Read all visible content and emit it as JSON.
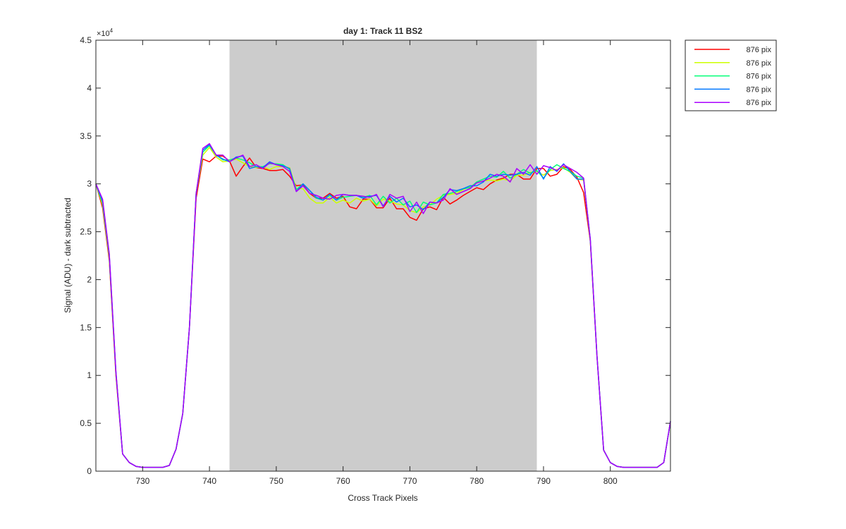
{
  "chart_data": {
    "type": "line",
    "title": "day 1: Track 11  BS2",
    "xlabel": "Cross Track Pixels",
    "ylabel": "Signal (ADU) - dark subtracted",
    "y_multiplier_label": "×10",
    "y_multiplier_exponent": "4",
    "xlim": [
      723,
      809
    ],
    "ylim": [
      0,
      45000
    ],
    "x_ticks": [
      730,
      740,
      750,
      760,
      770,
      780,
      790,
      800
    ],
    "x_tick_labels": [
      "730",
      "740",
      "750",
      "760",
      "770",
      "780",
      "790",
      "800"
    ],
    "y_ticks": [
      0,
      5000,
      10000,
      15000,
      20000,
      25000,
      30000,
      35000,
      40000,
      45000
    ],
    "y_tick_labels": [
      "0",
      "0.5",
      "1",
      "1.5",
      "2",
      "2.5",
      "3",
      "3.5",
      "4",
      "4.5"
    ],
    "grid": false,
    "legend_position": "outside-top-right",
    "shaded_region": {
      "x": [
        743,
        789
      ],
      "color": "#cccccc"
    },
    "x": [
      723,
      724,
      725,
      726,
      727,
      728,
      729,
      730,
      731,
      732,
      733,
      734,
      735,
      736,
      737,
      738,
      739,
      740,
      741,
      742,
      743,
      744,
      745,
      746,
      747,
      748,
      749,
      750,
      751,
      752,
      753,
      754,
      755,
      756,
      757,
      758,
      759,
      760,
      761,
      762,
      763,
      764,
      765,
      766,
      767,
      768,
      769,
      770,
      771,
      772,
      773,
      774,
      775,
      776,
      777,
      778,
      779,
      780,
      781,
      782,
      783,
      784,
      785,
      786,
      787,
      788,
      789,
      790,
      791,
      792,
      793,
      794,
      795,
      796,
      797,
      798,
      799,
      800,
      801,
      802,
      803,
      804,
      805,
      806,
      807,
      808,
      809
    ],
    "series": [
      {
        "name": "876 pix",
        "color": "#ff0000",
        "values": [
          30000,
          27500,
          22000,
          10000,
          1800,
          900,
          500,
          400,
          400,
          400,
          400,
          600,
          2300,
          6000,
          15000,
          28500,
          32600,
          32300,
          32900,
          32900,
          32400,
          30800,
          31800,
          32700,
          31700,
          31600,
          31400,
          31400,
          31500,
          30800,
          29800,
          29900,
          29000,
          28500,
          28500,
          29000,
          28500,
          28700,
          27600,
          27400,
          28400,
          28400,
          27500,
          27500,
          28500,
          27400,
          27400,
          26500,
          26200,
          27400,
          27600,
          27300,
          28600,
          27900,
          28300,
          28800,
          29200,
          29600,
          29400,
          30000,
          30400,
          30600,
          31000,
          31000,
          30500,
          30500,
          31600,
          31600,
          30800,
          31000,
          31800,
          31500,
          30700,
          29100,
          24000,
          12000,
          2200,
          900,
          500,
          400,
          400,
          400,
          400,
          400,
          400,
          900,
          5200
        ]
      },
      {
        "name": "876 pix",
        "color": "#ccff00",
        "values": [
          30000,
          27800,
          22300,
          10200,
          1800,
          900,
          500,
          400,
          400,
          400,
          400,
          600,
          2300,
          6000,
          15000,
          29000,
          33000,
          33800,
          32800,
          32300,
          32400,
          32600,
          32200,
          31800,
          31700,
          31800,
          31500,
          31800,
          31800,
          31700,
          29500,
          29500,
          28500,
          28000,
          28000,
          28600,
          28000,
          28300,
          28000,
          28500,
          28200,
          28400,
          27700,
          28400,
          28200,
          27900,
          27800,
          27200,
          27000,
          27600,
          27800,
          28400,
          28800,
          28900,
          29000,
          29400,
          29700,
          30100,
          30300,
          30400,
          30300,
          30500,
          30300,
          30900,
          30900,
          31200,
          31300,
          30900,
          31400,
          31500,
          31700,
          31200,
          30500,
          30400,
          24000,
          12000,
          2200,
          900,
          500,
          400,
          400,
          400,
          400,
          400,
          400,
          900,
          5200
        ]
      },
      {
        "name": "876 pix",
        "color": "#00ff77",
        "values": [
          30000,
          28000,
          22500,
          10300,
          1800,
          900,
          500,
          400,
          400,
          400,
          400,
          600,
          2300,
          6000,
          15000,
          29000,
          33300,
          34000,
          33000,
          32500,
          32500,
          32700,
          32500,
          32200,
          31800,
          31800,
          32100,
          32100,
          32000,
          31500,
          29400,
          30000,
          29300,
          28500,
          28300,
          28800,
          28300,
          28600,
          28700,
          28800,
          28600,
          28800,
          27800,
          28700,
          28000,
          28500,
          27800,
          28200,
          27000,
          28100,
          27800,
          28000,
          28900,
          29000,
          29200,
          29500,
          29600,
          30200,
          30500,
          30800,
          30700,
          31300,
          30600,
          31000,
          31500,
          31100,
          31400,
          30600,
          31500,
          32000,
          31600,
          31300,
          30800,
          30600,
          24200,
          12000,
          2200,
          900,
          500,
          400,
          400,
          400,
          400,
          400,
          400,
          900,
          5200
        ]
      },
      {
        "name": "876 pix",
        "color": "#0077ff",
        "values": [
          30000,
          28200,
          22600,
          10400,
          1800,
          900,
          500,
          400,
          400,
          400,
          400,
          600,
          2300,
          6000,
          15000,
          29000,
          33500,
          34100,
          33000,
          32600,
          32300,
          32800,
          32900,
          31600,
          31800,
          31700,
          32300,
          32000,
          31900,
          31600,
          29200,
          30000,
          29300,
          28600,
          28300,
          28900,
          28300,
          28900,
          28800,
          28800,
          28500,
          28700,
          28800,
          27700,
          28700,
          28100,
          28500,
          27600,
          27800,
          27300,
          28100,
          28000,
          28600,
          29400,
          29300,
          29500,
          29800,
          29800,
          30200,
          31000,
          30800,
          31000,
          30900,
          31000,
          31200,
          30900,
          31800,
          30500,
          31800,
          31300,
          32100,
          31300,
          30500,
          30500,
          24200,
          12000,
          2200,
          900,
          500,
          400,
          400,
          400,
          400,
          400,
          400,
          900,
          5200
        ]
      },
      {
        "name": "876 pix",
        "color": "#aa00ff",
        "values": [
          30000,
          28400,
          22700,
          10400,
          1800,
          900,
          500,
          400,
          400,
          400,
          400,
          600,
          2300,
          6000,
          15000,
          29000,
          33700,
          34200,
          33000,
          33000,
          32300,
          32700,
          33000,
          31800,
          32000,
          31600,
          32200,
          32000,
          31800,
          31300,
          29200,
          29800,
          29000,
          28800,
          28500,
          28400,
          28800,
          28900,
          28800,
          28800,
          28700,
          28600,
          28900,
          27600,
          28900,
          28500,
          28700,
          27100,
          28100,
          26900,
          28100,
          28000,
          28300,
          29500,
          28900,
          29200,
          29500,
          30100,
          30300,
          30600,
          31000,
          30800,
          30200,
          31600,
          31000,
          32000,
          31000,
          31900,
          31700,
          31400,
          32000,
          31600,
          31200,
          30600,
          24200,
          12000,
          2200,
          900,
          500,
          400,
          400,
          400,
          400,
          400,
          400,
          900,
          5200
        ]
      }
    ]
  }
}
